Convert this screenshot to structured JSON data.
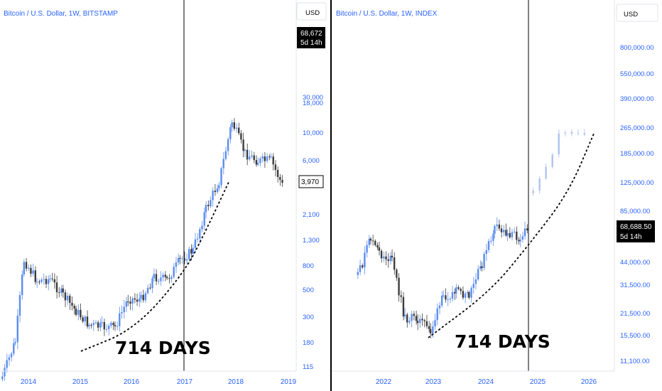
{
  "chart_data": [
    {
      "type": "candlestick",
      "title": "Bitcoin / U.S. Dollar, 1W, BITSTAMP",
      "currency_label": "USD",
      "scale": "log",
      "y_ticks": [
        "30,000",
        "18,000",
        "10,000",
        "6,000",
        "2,100",
        "1,300",
        "800",
        "500",
        "300",
        "180",
        "115"
      ],
      "x_ticks": [
        "2014",
        "2015",
        "2016",
        "2017",
        "2018",
        "2019"
      ],
      "price_label": {
        "value": "68,672",
        "countdown": "5d 14h"
      },
      "last_price_label": "3,970",
      "annotation": "714 DAYS",
      "series": [
        {
          "name": "",
          "x": [
            "2013-07",
            "2013-10",
            "2013-12",
            "2014-03",
            "2014-06",
            "2014-09",
            "2014-12",
            "2015-03",
            "2015-06",
            "2015-09",
            "2015-12",
            "2016-03",
            "2016-06",
            "2016-09",
            "2016-12",
            "2017-03",
            "2017-06",
            "2017-09",
            "2017-12",
            "2018-03",
            "2018-06",
            "2018-09",
            "2018-12"
          ],
          "y": [
            90,
            180,
            900,
            600,
            620,
            450,
            330,
            250,
            240,
            240,
            420,
            415,
            650,
            610,
            900,
            1100,
            2500,
            4300,
            14000,
            7500,
            6400,
            6500,
            3700
          ]
        }
      ]
    },
    {
      "type": "candlestick",
      "title": "Bitcoin / U.S. Dollar, 1W, INDEX",
      "currency_label": "USD",
      "scale": "log",
      "y_ticks": [
        "800,000.00",
        "550,000.00",
        "390,000.00",
        "265,000.00",
        "185,000.00",
        "125,000.00",
        "85,000.00",
        "44,000.00",
        "31,500.00",
        "21,500.00",
        "15,500.00",
        "11,100.00"
      ],
      "x_ticks": [
        "2022",
        "2023",
        "2024",
        "2025",
        "2026"
      ],
      "price_label": {
        "value": "68,688.50",
        "countdown": "5d 14h"
      },
      "annotation": "714 DAYS",
      "series": [
        {
          "name": "",
          "x": [
            "2021-07",
            "2021-10",
            "2021-12",
            "2022-03",
            "2022-06",
            "2022-09",
            "2022-12",
            "2023-03",
            "2023-06",
            "2023-09",
            "2023-12",
            "2024-03",
            "2024-06",
            "2024-09",
            "2024-11"
          ],
          "y": [
            35000,
            60000,
            48000,
            44000,
            20000,
            20000,
            16800,
            27000,
            28500,
            26500,
            42000,
            68000,
            64000,
            60000,
            68000
          ]
        },
        {
          "name": "",
          "projection": true,
          "x": [
            "2024-12",
            "2025-03",
            "2025-06",
            "2025-09",
            "2026-01"
          ],
          "y": [
            110000,
            150000,
            250000,
            240000,
            255000
          ]
        }
      ]
    }
  ]
}
